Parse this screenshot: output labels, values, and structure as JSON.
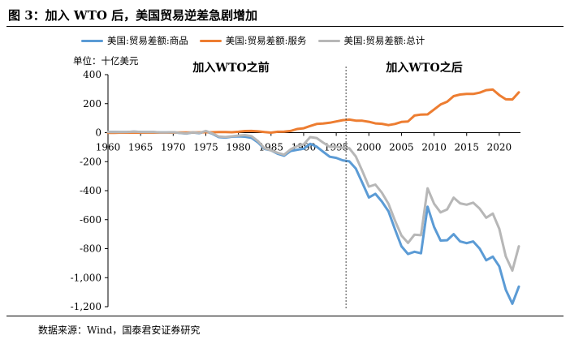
{
  "figure": {
    "title": "图 3：加入 WTO 后，美国贸易逆差急剧增加",
    "source": "数据来源：Wind，国泰君安证券研究"
  },
  "chart_data": {
    "type": "line",
    "title": "",
    "unit_label": "单位：十亿美元",
    "xlabel": "",
    "ylabel": "",
    "xlim": [
      1960,
      2024
    ],
    "ylim": [
      -1200,
      400
    ],
    "x_ticks": [
      1960,
      1965,
      1970,
      1975,
      1980,
      1985,
      1990,
      1995,
      2000,
      2005,
      2010,
      2015,
      2020
    ],
    "y_ticks": [
      400,
      200,
      0,
      -200,
      -400,
      -600,
      -800,
      -1000,
      -1200
    ],
    "y_tick_labels": [
      "400",
      "200",
      "0",
      "-200",
      "-400",
      "-600",
      "-800",
      "-1,000",
      "-1,200"
    ],
    "legend_position": "top",
    "x": [
      1960,
      1961,
      1962,
      1963,
      1964,
      1965,
      1966,
      1967,
      1968,
      1969,
      1970,
      1971,
      1972,
      1973,
      1974,
      1975,
      1976,
      1977,
      1978,
      1979,
      1980,
      1981,
      1982,
      1983,
      1984,
      1985,
      1986,
      1987,
      1988,
      1989,
      1990,
      1991,
      1992,
      1993,
      1994,
      1995,
      1996,
      1997,
      1998,
      1999,
      2000,
      2001,
      2002,
      2003,
      2004,
      2005,
      2006,
      2007,
      2008,
      2009,
      2010,
      2011,
      2012,
      2013,
      2014,
      2015,
      2016,
      2017,
      2018,
      2019,
      2020,
      2021,
      2022,
      2023
    ],
    "series": [
      {
        "name": "美国:贸易差额:商品",
        "color": "#5B9BD5",
        "values": [
          5,
          5,
          4,
          5,
          7,
          5,
          4,
          4,
          1,
          1,
          3,
          -2,
          -6,
          1,
          -4,
          9,
          -8,
          -31,
          -34,
          -28,
          -26,
          -28,
          -36,
          -67,
          -112,
          -122,
          -145,
          -159,
          -127,
          -118,
          -111,
          -77,
          -97,
          -132,
          -166,
          -174,
          -191,
          -198,
          -247,
          -346,
          -447,
          -422,
          -475,
          -542,
          -666,
          -783,
          -837,
          -821,
          -832,
          -510,
          -650,
          -744,
          -742,
          -700,
          -750,
          -762,
          -750,
          -800,
          -880,
          -855,
          -922,
          -1083,
          -1180,
          -1062
        ]
      },
      {
        "name": "美国:贸易差额:服务",
        "color": "#ED7D31",
        "values": [
          -1,
          -1,
          0,
          0,
          0,
          0,
          0,
          0,
          0,
          0,
          0,
          1,
          1,
          1,
          2,
          3,
          3,
          4,
          4,
          3,
          6,
          11,
          12,
          9,
          4,
          0,
          6,
          7,
          12,
          25,
          30,
          46,
          60,
          63,
          68,
          77,
          86,
          90,
          83,
          82,
          75,
          64,
          61,
          52,
          60,
          74,
          77,
          118,
          125,
          126,
          160,
          194,
          213,
          252,
          263,
          267,
          267,
          276,
          293,
          297,
          259,
          230,
          229,
          278
        ]
      },
      {
        "name": "美国:贸易差额:总计",
        "color": "#B7B7B7",
        "values": [
          4,
          4,
          4,
          5,
          7,
          5,
          4,
          4,
          1,
          1,
          3,
          -1,
          -5,
          2,
          -2,
          12,
          -5,
          -27,
          -30,
          -25,
          -20,
          -17,
          -24,
          -58,
          -108,
          -122,
          -139,
          -152,
          -115,
          -93,
          -81,
          -31,
          -37,
          -69,
          -98,
          -97,
          -104,
          -108,
          -164,
          -264,
          -372,
          -358,
          -414,
          -490,
          -606,
          -709,
          -760,
          -703,
          -707,
          -384,
          -490,
          -550,
          -529,
          -448,
          -487,
          -497,
          -483,
          -524,
          -587,
          -558,
          -663,
          -853,
          -951,
          -784
        ]
      }
    ],
    "divider": {
      "x": 1996.5,
      "style": "dashed",
      "label_before": "加入WTO之前",
      "label_after": "加入WTO之后"
    }
  }
}
